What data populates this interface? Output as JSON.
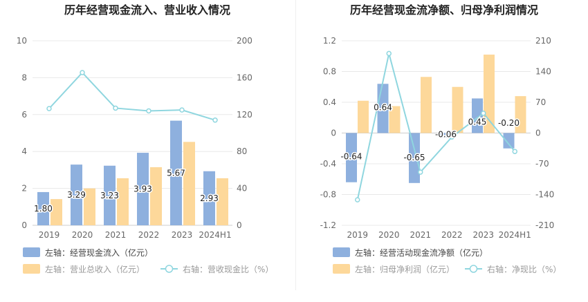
{
  "colors": {
    "bar_blue": "#8eb0de",
    "bar_orange": "#fdd89a",
    "line": "#8fd6df",
    "axis_text": "#666666",
    "title": "#222222",
    "grid": "#e8e8e8"
  },
  "chart_data": [
    {
      "type": "bar",
      "title": "历年经营现金流入、营业收入情况",
      "categories": [
        "2019",
        "2020",
        "2021",
        "2022",
        "2023",
        "2024H1"
      ],
      "left_axis": {
        "ylim": [
          0,
          10
        ],
        "ticks": [
          "0",
          "2",
          "4",
          "6",
          "8",
          "10"
        ]
      },
      "right_axis": {
        "ylim": [
          0,
          200
        ],
        "ticks": [
          "0",
          "40",
          "80",
          "120",
          "160",
          "200"
        ]
      },
      "series": [
        {
          "name": "左轴：经营现金流入（亿元）",
          "kind": "bar",
          "axis": "left",
          "values": [
            1.8,
            3.29,
            3.23,
            3.93,
            5.67,
            2.93
          ],
          "labels": [
            "1.80",
            "3.29",
            "3.23",
            "3.93",
            "5.67",
            "2.93"
          ]
        },
        {
          "name": "左轴：营业总收入（亿元）",
          "kind": "bar",
          "axis": "left",
          "values": [
            1.42,
            2.0,
            2.55,
            3.15,
            4.52,
            2.55
          ]
        },
        {
          "name": "右轴：营收现金比（%）",
          "kind": "line",
          "axis": "right",
          "values": [
            126.5,
            165.5,
            127,
            124,
            125,
            114
          ]
        }
      ]
    },
    {
      "type": "bar",
      "title": "历年经营现金流净额、归母净利润情况",
      "categories": [
        "2019",
        "2020",
        "2021",
        "2022",
        "2023",
        "2024H1"
      ],
      "left_axis": {
        "ylim": [
          -1.2,
          1.2
        ],
        "ticks": [
          "-1.2",
          "-0.8",
          "-0.4",
          "0",
          "0.4",
          "0.8",
          "1.2"
        ]
      },
      "right_axis": {
        "ylim": [
          -210,
          210
        ],
        "ticks": [
          "-210",
          "-140",
          "-70",
          "0",
          "70",
          "140",
          "210"
        ]
      },
      "series": [
        {
          "name": "左轴：经营活动现金流净额（亿元）",
          "kind": "bar",
          "axis": "left",
          "values": [
            -0.64,
            0.64,
            -0.65,
            -0.06,
            0.45,
            -0.2
          ],
          "labels": [
            "-0.64",
            "0.64",
            "-0.65",
            "-0.06",
            "0.45",
            "-0.20"
          ]
        },
        {
          "name": "左轴：归母净利润（亿元）",
          "kind": "bar",
          "axis": "left",
          "values": [
            0.42,
            0.35,
            0.73,
            0.6,
            1.02,
            0.48
          ]
        },
        {
          "name": "右轴：净现比（%）",
          "kind": "line",
          "axis": "right",
          "values": [
            -152,
            181,
            -89,
            -9,
            45,
            -42
          ]
        }
      ]
    }
  ]
}
